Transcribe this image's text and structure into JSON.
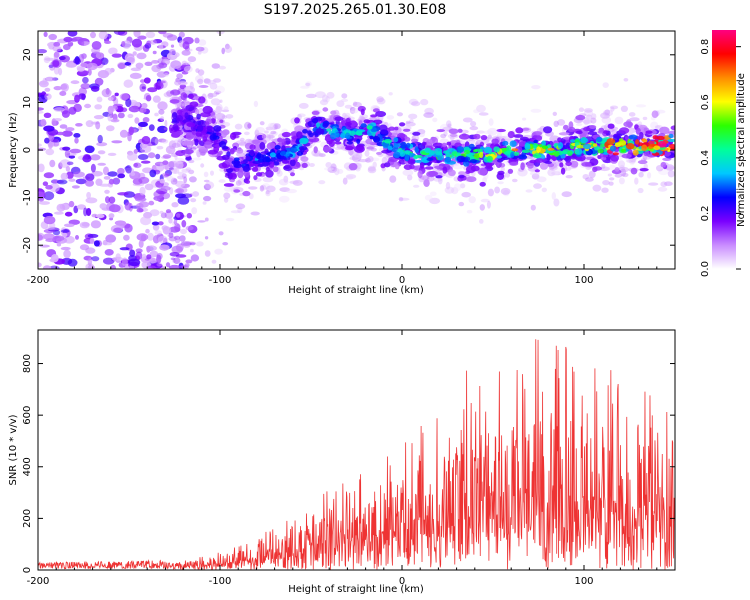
{
  "title": "S197.2025.265.01.30.E08",
  "chart_data": [
    {
      "type": "heatmap",
      "name": "spectrogram",
      "xlabel": "Height of straight line (km)",
      "ylabel": "Frequency (Hz)",
      "xlim": [
        -200,
        150
      ],
      "ylim": [
        -25,
        25
      ],
      "xticks": [
        -200,
        -100,
        0,
        100
      ],
      "yticks": [
        -20,
        -10,
        0,
        10,
        20
      ],
      "colorbar": {
        "label": "Normalized spectral amplitude",
        "range": [
          0.0,
          0.86
        ],
        "ticks": [
          "0.0",
          "0.2",
          "0.4",
          "0.6",
          "0.8"
        ],
        "tick_values": [
          0.0,
          0.2,
          0.4,
          0.6,
          0.8
        ],
        "colors": [
          "#ffffff",
          "#c98cff",
          "#7a00ff",
          "#0000ff",
          "#00c8ff",
          "#00ff9a",
          "#2cff00",
          "#ffff00",
          "#ff8c00",
          "#ff0000",
          "#ff0080"
        ]
      },
      "ridge": {
        "height_km": [
          -200,
          -150,
          -120,
          -110,
          -100,
          -95,
          -90,
          -80,
          -70,
          -60,
          -50,
          -45,
          -40,
          -35,
          -30,
          -25,
          -20,
          -15,
          -10,
          -5,
          0,
          10,
          20,
          30,
          40,
          50,
          60,
          70,
          80,
          90,
          100,
          110,
          120,
          130,
          140,
          150
        ],
        "frequency_hz": [
          0,
          0,
          6,
          5,
          2,
          -3,
          -3,
          -2,
          -1,
          -1,
          4,
          5,
          4,
          4,
          3,
          3,
          5,
          4,
          2,
          1,
          0,
          -1,
          -1,
          -1,
          -1,
          -1,
          0,
          0,
          0,
          0,
          1,
          1,
          1,
          1,
          1,
          1
        ]
      }
    },
    {
      "type": "line",
      "name": "snr",
      "xlabel": "Height of straight line (km)",
      "ylabel": "SNR (10 * v/v)",
      "xlim": [
        -200,
        150
      ],
      "ylim": [
        0,
        930
      ],
      "xticks": [
        -200,
        -100,
        0,
        100
      ],
      "yticks": [
        0,
        200,
        400,
        600,
        800
      ],
      "color": "#ee3333",
      "envelope": {
        "height_km": [
          -200,
          -150,
          -120,
          -100,
          -80,
          -60,
          -40,
          -20,
          0,
          20,
          40,
          60,
          80,
          100,
          120,
          150
        ],
        "snr_max": [
          30,
          35,
          40,
          70,
          140,
          230,
          320,
          400,
          480,
          640,
          820,
          850,
          920,
          820,
          780,
          600
        ],
        "snr_median": [
          15,
          18,
          20,
          30,
          55,
          90,
          130,
          170,
          210,
          270,
          330,
          350,
          370,
          340,
          320,
          280
        ]
      }
    }
  ]
}
